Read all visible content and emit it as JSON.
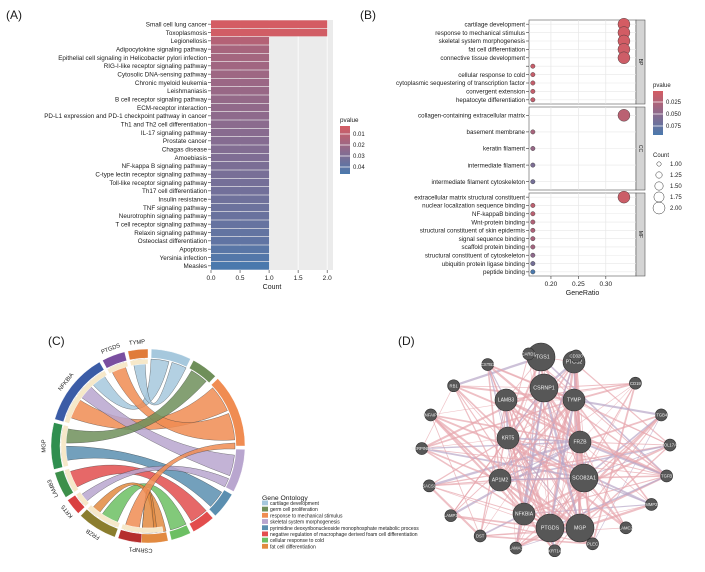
{
  "panels": {
    "A": "(A)",
    "B": "(B)",
    "C": "(C)",
    "D": "(D)"
  },
  "chart_data": [
    {
      "type": "bar",
      "title": "",
      "panel": "A",
      "xlabel": "Count",
      "ylabel": "",
      "xlim": [
        0,
        2.1
      ],
      "xticks": [
        "0.0",
        "0.5",
        "1.0",
        "1.5",
        "2.0"
      ],
      "categories": [
        "Small cell lung cancer",
        "Toxoplasmosis",
        "Legionellosis",
        "Adipocytokine signaling pathway",
        "Epithelial cell signaling in Helicobacter pylori infection",
        "RIG-I-like receptor signaling pathway",
        "Cytosolic DNA-sensing pathway",
        "Chronic myeloid leukemia",
        "Leishmaniasis",
        "B cell receptor signaling pathway",
        "ECM-receptor interaction",
        "PD-L1 expression and PD-1 checkpoint pathway in cancer",
        "Th1 and Th2 cell differentiation",
        "IL-17 signaling pathway",
        "Prostate cancer",
        "Chagas disease",
        "Amoebiasis",
        "NF-kappa B signaling pathway",
        "C-type lectin receptor signaling pathway",
        "Toll-like receptor signaling pathway",
        "Th17 cell differentiation",
        "Insulin resistance",
        "TNF signaling pathway",
        "Neurotrophin signaling pathway",
        "T cell receptor signaling pathway",
        "Relaxin signaling pathway",
        "Osteoclast differentiation",
        "Apoptosis",
        "Yersinia infection",
        "Measles"
      ],
      "values": [
        2,
        2,
        1,
        1,
        1,
        1,
        1,
        1,
        1,
        1,
        1,
        1,
        1,
        1,
        1,
        1,
        1,
        1,
        1,
        1,
        1,
        1,
        1,
        1,
        1,
        1,
        1,
        1,
        1,
        1
      ],
      "pvalues": [
        0.002,
        0.003,
        0.012,
        0.016,
        0.017,
        0.018,
        0.019,
        0.02,
        0.021,
        0.022,
        0.023,
        0.024,
        0.025,
        0.026,
        0.027,
        0.028,
        0.029,
        0.03,
        0.031,
        0.032,
        0.033,
        0.034,
        0.035,
        0.036,
        0.037,
        0.038,
        0.039,
        0.041,
        0.043,
        0.046
      ],
      "legend": {
        "title": "pvalue",
        "ticks": [
          "0.01",
          "0.02",
          "0.03",
          "0.04"
        ],
        "low_color": "#d45c63",
        "high_color": "#4a79ad"
      }
    },
    {
      "type": "scatter",
      "panel": "B",
      "xlabel": "GeneRatio",
      "xlim": [
        0.16,
        0.355
      ],
      "xticks": [
        "0.20",
        "0.25",
        "0.30"
      ],
      "groups": [
        {
          "name": "BP",
          "terms": [
            {
              "term": "cartilage development",
              "ratio": 0.333,
              "count": 2,
              "p": 0.005
            },
            {
              "term": "response to mechanical stimulus",
              "ratio": 0.333,
              "count": 2,
              "p": 0.006
            },
            {
              "term": "skeletal system morphogenesis",
              "ratio": 0.333,
              "count": 2,
              "p": 0.007
            },
            {
              "term": "fat cell differentiation",
              "ratio": 0.333,
              "count": 2,
              "p": 0.008
            },
            {
              "term": "connective tissue development",
              "ratio": 0.333,
              "count": 2,
              "p": 0.009
            },
            {
              "term": "",
              "ratio": 0.167,
              "count": 1,
              "p": 0.012
            },
            {
              "term": "cellular response to cold",
              "ratio": 0.167,
              "count": 1,
              "p": 0.013
            },
            {
              "term": "cytoplasmic sequestering of transcription factor",
              "ratio": 0.167,
              "count": 1,
              "p": 0.014
            },
            {
              "term": "convergent extension",
              "ratio": 0.167,
              "count": 1,
              "p": 0.015
            },
            {
              "term": "hepatocyte differentiation",
              "ratio": 0.167,
              "count": 1,
              "p": 0.016
            }
          ]
        },
        {
          "name": "CC",
          "terms": [
            {
              "term": "collagen-containing extracellular matrix",
              "ratio": 0.333,
              "count": 2,
              "p": 0.02
            },
            {
              "term": "basement membrane",
              "ratio": 0.167,
              "count": 1,
              "p": 0.03
            },
            {
              "term": "keratin filament",
              "ratio": 0.167,
              "count": 1,
              "p": 0.04
            },
            {
              "term": "intermediate filament",
              "ratio": 0.167,
              "count": 1,
              "p": 0.055
            },
            {
              "term": "intermediate filament cytoskeleton",
              "ratio": 0.167,
              "count": 1,
              "p": 0.06
            }
          ]
        },
        {
          "name": "MF",
          "terms": [
            {
              "term": "extracellular matrix structural constituent",
              "ratio": 0.333,
              "count": 2,
              "p": 0.01
            },
            {
              "term": "nuclear localization sequence binding",
              "ratio": 0.167,
              "count": 1,
              "p": 0.018
            },
            {
              "term": "NF-kappaB binding",
              "ratio": 0.167,
              "count": 1,
              "p": 0.02
            },
            {
              "term": "Wnt-protein binding",
              "ratio": 0.167,
              "count": 1,
              "p": 0.025
            },
            {
              "term": "structural constituent of skin epidermis",
              "ratio": 0.167,
              "count": 1,
              "p": 0.027
            },
            {
              "term": "signal sequence binding",
              "ratio": 0.167,
              "count": 1,
              "p": 0.03
            },
            {
              "term": "scaffold protein binding",
              "ratio": 0.167,
              "count": 1,
              "p": 0.033
            },
            {
              "term": "structural constituent of cytoskeleton",
              "ratio": 0.167,
              "count": 1,
              "p": 0.045
            },
            {
              "term": "ubiquitin protein ligase binding",
              "ratio": 0.167,
              "count": 1,
              "p": 0.06
            },
            {
              "term": "peptide binding",
              "ratio": 0.167,
              "count": 1,
              "p": 0.085
            }
          ]
        }
      ],
      "legend_p": {
        "title": "pvalue",
        "ticks": [
          "0.025",
          "0.050",
          "0.075"
        ]
      },
      "legend_count": {
        "title": "Count",
        "ticks": [
          "1.00",
          "1.25",
          "1.50",
          "1.75",
          "2.00"
        ]
      }
    },
    {
      "type": "chord",
      "panel": "C",
      "genes": [
        {
          "name": "TYMP",
          "color": "#e07b3a"
        },
        {
          "name": "PTGDS",
          "color": "#7a4fa0"
        },
        {
          "name": "NFKBIA",
          "color": "#3b5ca6"
        },
        {
          "name": "MGP",
          "color": "#2f8f4f"
        },
        {
          "name": "LAMB3",
          "color": "#3d8f4a"
        },
        {
          "name": "KRT5",
          "color": "#d94040"
        },
        {
          "name": "FRZB",
          "color": "#8b7d2e"
        },
        {
          "name": "CSRNP1",
          "color": "#b52e2e"
        }
      ],
      "legend_title": "Gene Ontology",
      "terms": [
        {
          "name": "cartilage development",
          "color": "#a6c8dd"
        },
        {
          "name": "germ cell proliferation",
          "color": "#6f8f5a"
        },
        {
          "name": "response to mechanical stimulus",
          "color": "#f08c52"
        },
        {
          "name": "skeletal system morphogenesis",
          "color": "#b9a6cf"
        },
        {
          "name": "pyrimidine deoxyribonucleoside monophosphate metabolic process",
          "color": "#5b8fb0"
        },
        {
          "name": "negative regulation of macrophage derived foam cell differentiation",
          "color": "#e24d4d"
        },
        {
          "name": "cellular response to cold",
          "color": "#6cbf63"
        },
        {
          "name": "fat cell differentiation",
          "color": "#e28a40"
        }
      ]
    },
    {
      "type": "network",
      "panel": "D",
      "nodes": [
        {
          "name": "PTGS1",
          "size": 3
        },
        {
          "name": "PTGS2",
          "size": 2
        },
        {
          "name": "CD19",
          "size": 1
        },
        {
          "name": "ITGB4",
          "size": 1
        },
        {
          "name": "COL17A1",
          "size": 1
        },
        {
          "name": "TGFB",
          "size": 1
        },
        {
          "name": "MMP2",
          "size": 1
        },
        {
          "name": "LAMC2",
          "size": 1
        },
        {
          "name": "PLEC",
          "size": 1
        },
        {
          "name": "KRT14",
          "size": 1
        },
        {
          "name": "LAMA3",
          "size": 1
        },
        {
          "name": "DST",
          "size": 1
        },
        {
          "name": "LAMP1",
          "size": 1
        },
        {
          "name": "SACS1",
          "size": 1
        },
        {
          "name": "SERPINE1",
          "size": 1
        },
        {
          "name": "TNFAIP3",
          "size": 1
        },
        {
          "name": "RB1",
          "size": 1
        },
        {
          "name": "CSTB1",
          "size": 1
        },
        {
          "name": "CARD1",
          "size": 1
        },
        {
          "name": "CD320",
          "size": 1
        },
        {
          "name": "CSRNP1",
          "size": 3
        },
        {
          "name": "LAMB3",
          "size": 2
        },
        {
          "name": "TYMP",
          "size": 2
        },
        {
          "name": "FRZB",
          "size": 2
        },
        {
          "name": "KRT5",
          "size": 2
        },
        {
          "name": "AP1M2",
          "size": 2
        },
        {
          "name": "SCO82A1",
          "size": 3
        },
        {
          "name": "NFKBIA",
          "size": 2
        },
        {
          "name": "PTGDS",
          "size": 3
        },
        {
          "name": "MGP",
          "size": 3
        }
      ]
    }
  ]
}
